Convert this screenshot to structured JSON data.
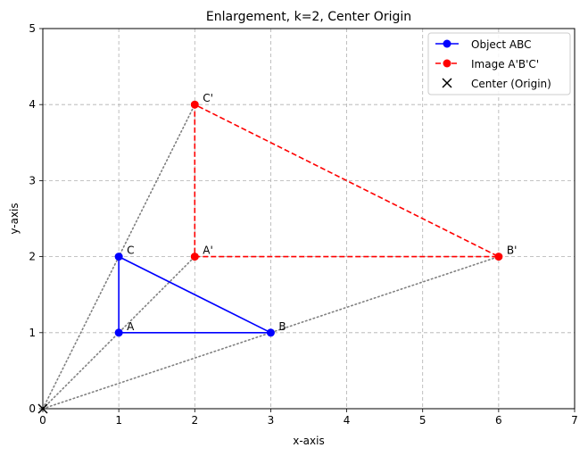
{
  "chart_data": {
    "type": "line",
    "title": "Enlargement, k=2, Center Origin",
    "xlabel": "x-axis",
    "ylabel": "y-axis",
    "xlim": [
      0,
      7
    ],
    "ylim": [
      0,
      5
    ],
    "xticks": [
      "0",
      "1",
      "2",
      "3",
      "4",
      "5",
      "6",
      "7"
    ],
    "yticks": [
      "0",
      "1",
      "2",
      "3",
      "4",
      "5"
    ],
    "grid": true,
    "legend_position": "top-right",
    "center": {
      "name": "Center (Origin)",
      "x": 0,
      "y": 0,
      "color": "#000000"
    },
    "series": [
      {
        "name": "Object ABC",
        "color": "#0000ff",
        "linestyle": "solid",
        "points": [
          {
            "label": "A",
            "x": 1,
            "y": 1
          },
          {
            "label": "B",
            "x": 3,
            "y": 1
          },
          {
            "label": "C",
            "x": 1,
            "y": 2
          }
        ]
      },
      {
        "name": "Image A'B'C'",
        "color": "#ff0000",
        "linestyle": "dashed",
        "points": [
          {
            "label": "A'",
            "x": 2,
            "y": 2
          },
          {
            "label": "B'",
            "x": 6,
            "y": 2
          },
          {
            "label": "C'",
            "x": 2,
            "y": 4
          }
        ]
      }
    ],
    "rays": [
      {
        "to": [
          2,
          2
        ]
      },
      {
        "to": [
          6,
          2
        ]
      },
      {
        "to": [
          2,
          4
        ]
      }
    ],
    "ray_color": "#808080"
  }
}
